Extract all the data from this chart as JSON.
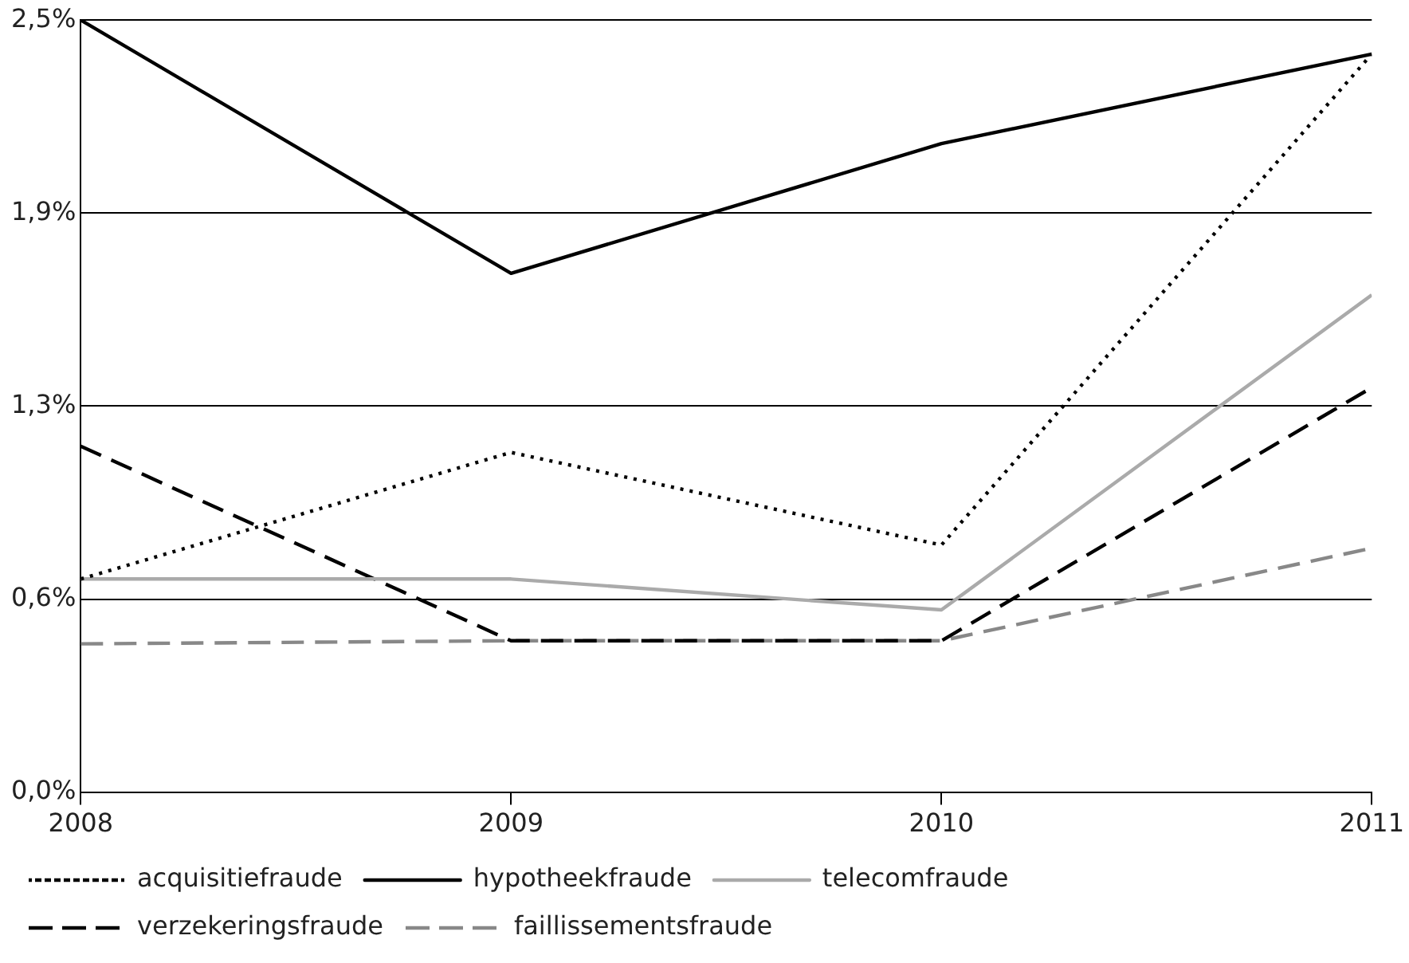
{
  "chart_data": {
    "type": "line",
    "x": [
      2008,
      2009,
      2010,
      2011
    ],
    "xlim": [
      2008,
      2011
    ],
    "xticks": [
      2008,
      2009,
      2010,
      2011
    ],
    "ylim": [
      0,
      2.5
    ],
    "yticks": [
      {
        "value": 0,
        "label": "0,0%"
      },
      {
        "value": 0.625,
        "label": "0,6%"
      },
      {
        "value": 1.25,
        "label": "1,3%"
      },
      {
        "value": 1.875,
        "label": "1,9%"
      },
      {
        "value": 2.5,
        "label": "2,5%"
      }
    ],
    "grid": "y",
    "legend": "bottom",
    "marker": "none",
    "series": [
      {
        "name": "acquisitiefraude",
        "color": "#000000",
        "line_style": "dotted",
        "values": [
          0.69,
          1.1,
          0.8,
          2.39
        ]
      },
      {
        "name": "hypotheekfraude",
        "color": "#000000",
        "line_style": "solid",
        "values": [
          2.5,
          1.68,
          2.1,
          2.39
        ]
      },
      {
        "name": "telecomfraude",
        "color": "#aaaaaa",
        "line_style": "solid",
        "values": [
          0.69,
          0.69,
          0.59,
          1.61
        ]
      },
      {
        "name": "verzekeringsfraude",
        "color": "#000000",
        "line_style": "dashed",
        "values": [
          1.12,
          0.49,
          0.49,
          1.31
        ]
      },
      {
        "name": "faillissementsfraude",
        "color": "#888888",
        "line_style": "dashed",
        "values": [
          0.48,
          0.49,
          0.49,
          0.79
        ]
      }
    ]
  }
}
